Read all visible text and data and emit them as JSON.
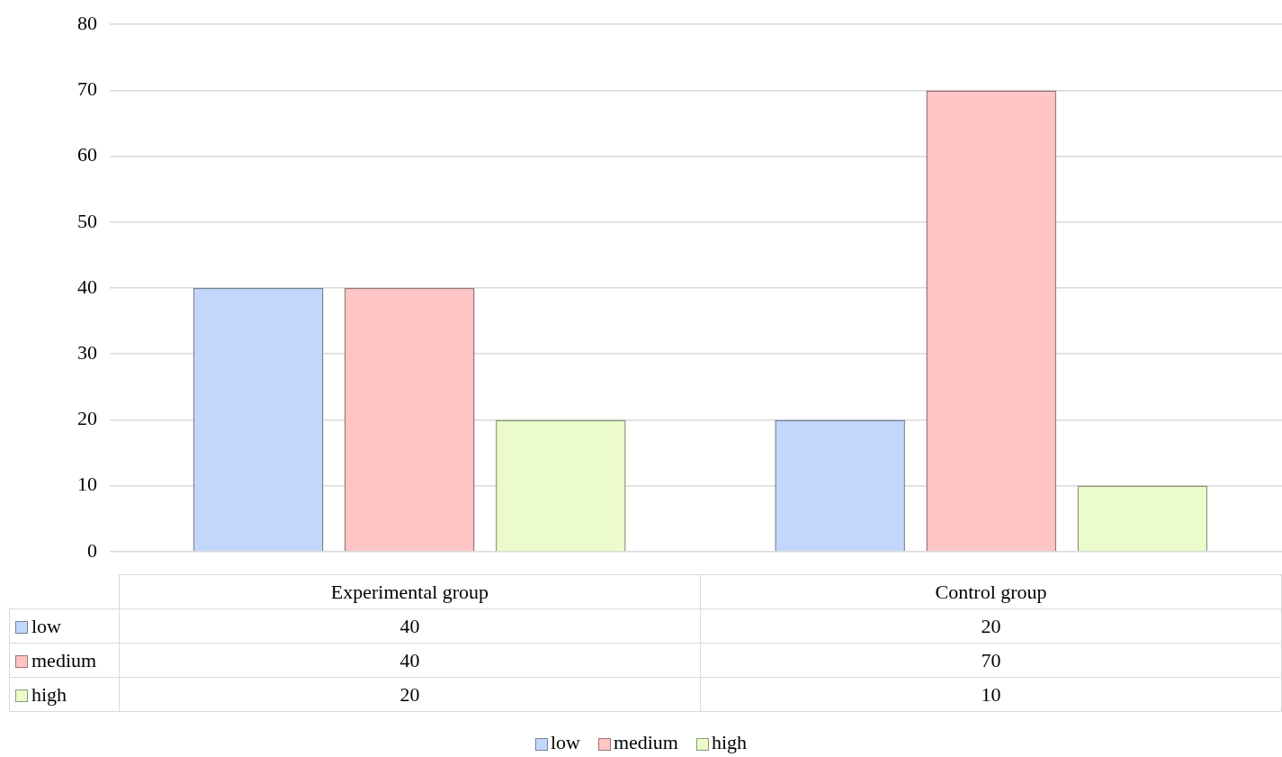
{
  "chart_data": {
    "type": "bar",
    "categories": [
      "Experimental group",
      "Control group"
    ],
    "series": [
      {
        "name": "low",
        "color": "#c3d7fd",
        "values": [
          40,
          20
        ]
      },
      {
        "name": "medium",
        "color": "#ffc4c4",
        "values": [
          40,
          70
        ]
      },
      {
        "name": "high",
        "color": "#ebfbc9",
        "values": [
          20,
          10
        ]
      }
    ],
    "ylim": [
      0,
      80
    ],
    "yticks": [
      0,
      10,
      20,
      30,
      40,
      50,
      60,
      70,
      80
    ],
    "grid": "y",
    "legend": "bottom",
    "data_labels": true
  }
}
